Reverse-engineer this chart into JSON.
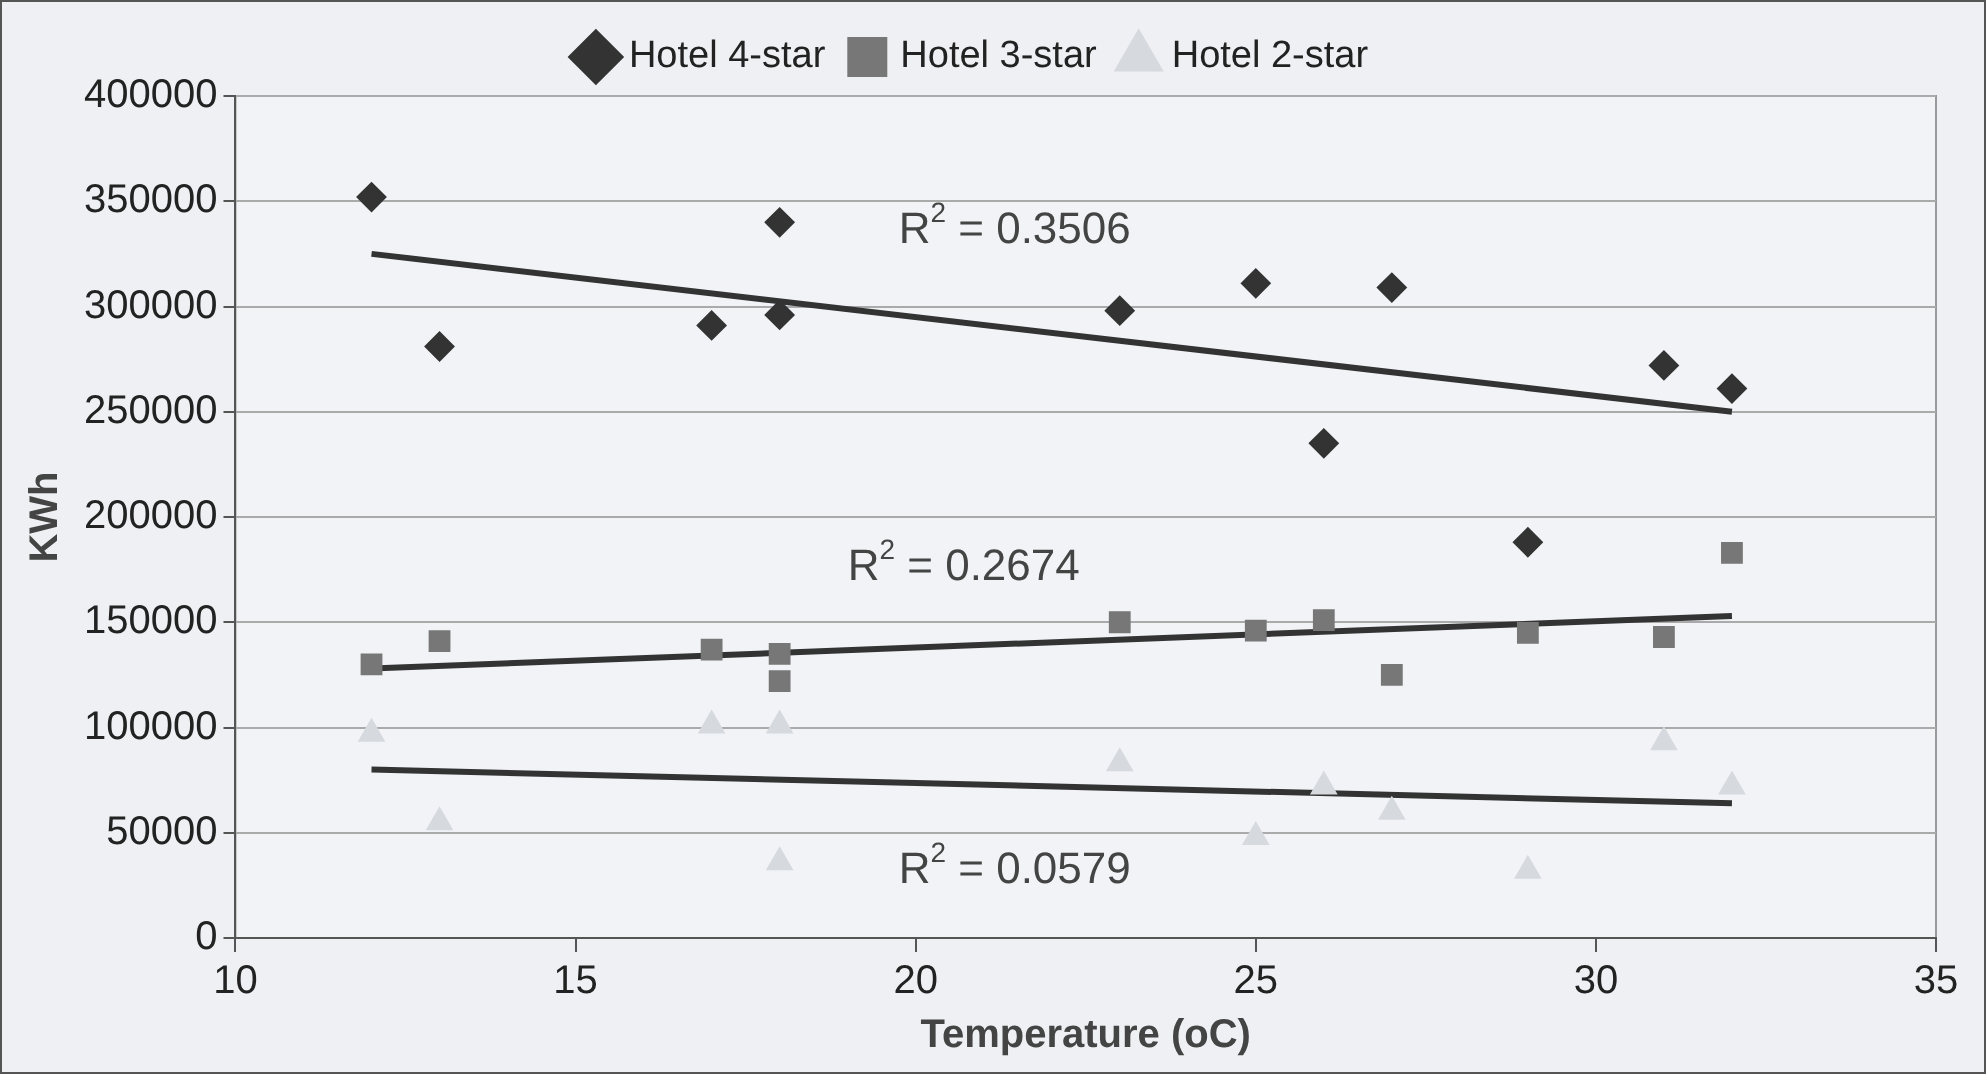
{
  "chart_data": {
    "type": "scatter",
    "xlabel": "Temperature (oC)",
    "ylabel": "KWh",
    "xlim": [
      10,
      35
    ],
    "xticks": [
      10,
      15,
      20,
      25,
      30,
      35
    ],
    "ylim": [
      0,
      400000
    ],
    "yticks": [
      0,
      50000,
      100000,
      150000,
      200000,
      250000,
      300000,
      350000,
      400000
    ],
    "grid": "y",
    "legend": "top",
    "series": [
      {
        "name": "Hotel 4-star",
        "type": "scatter",
        "marker": "diamond",
        "color": "#333333",
        "x": [
          12,
          13,
          17,
          18,
          18,
          23,
          25,
          26,
          27,
          29,
          31,
          32
        ],
        "values": [
          352000,
          281000,
          291000,
          340000,
          296000,
          298000,
          311000,
          235000,
          309000,
          188000,
          272000,
          261000
        ]
      },
      {
        "name": "Hotel 3-star",
        "type": "scatter",
        "marker": "square",
        "color": "#777777",
        "x": [
          12,
          13,
          17,
          18,
          18,
          23,
          25,
          26,
          27,
          29,
          31,
          32
        ],
        "values": [
          130000,
          141000,
          137000,
          135000,
          122000,
          150000,
          146000,
          151000,
          125000,
          145000,
          143000,
          183000
        ]
      },
      {
        "name": "Hotel 2-star",
        "type": "scatter",
        "marker": "triangle",
        "color": "#d6dade",
        "x": [
          12,
          13,
          17,
          18,
          18,
          23,
          25,
          26,
          27,
          29,
          31,
          32
        ],
        "values": [
          97000,
          55000,
          101000,
          101000,
          36000,
          83000,
          48000,
          72000,
          60000,
          32000,
          93000,
          72000
        ]
      },
      {
        "type": "line",
        "marker": "none",
        "color": "#333333",
        "x": [
          12,
          32
        ],
        "values": [
          325000,
          250000
        ]
      },
      {
        "type": "line",
        "marker": "none",
        "color": "#333333",
        "x": [
          12,
          32
        ],
        "values": [
          128000,
          153000
        ]
      },
      {
        "type": "line",
        "marker": "none",
        "color": "#333333",
        "x": [
          12,
          32
        ],
        "values": [
          80000,
          64000
        ]
      }
    ],
    "annotations": [
      "R$^{2}$ = 0.3506",
      "R$^{2}$ = 0.2674",
      "R$^{2}$ = 0.0579"
    ]
  }
}
